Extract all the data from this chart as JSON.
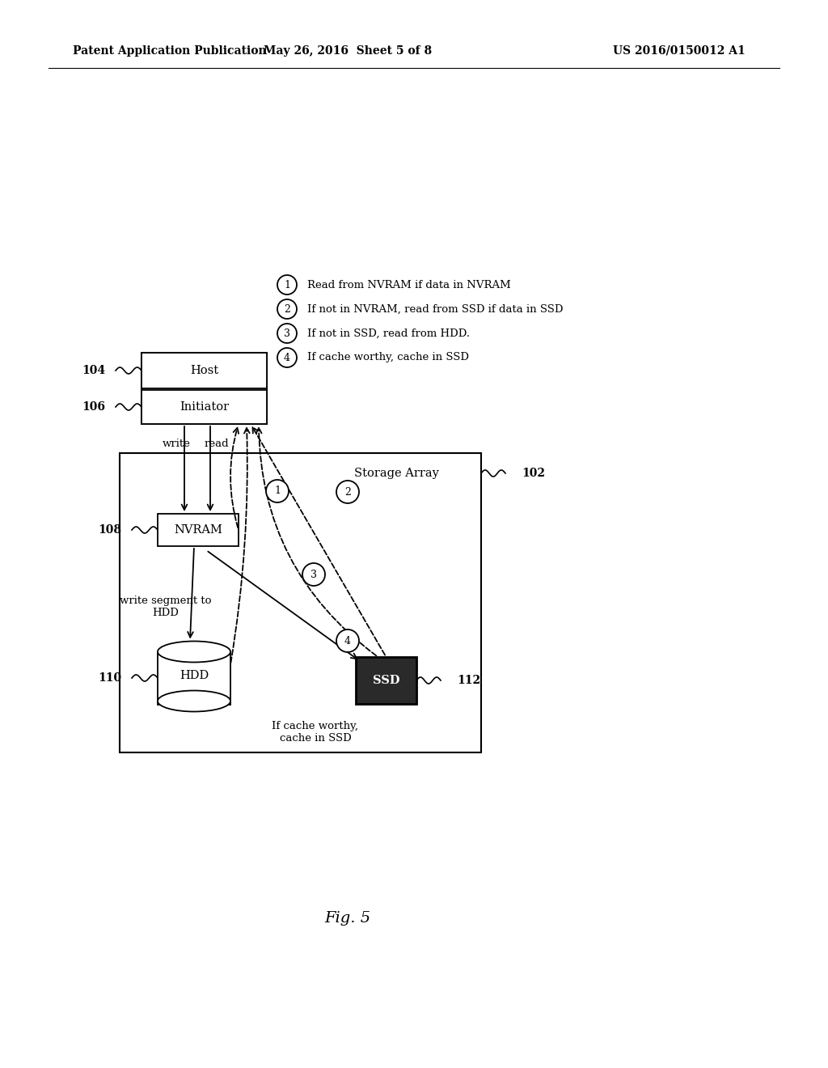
{
  "bg_color": "#ffffff",
  "header_left": "Patent Application Publication",
  "header_center": "May 26, 2016  Sheet 5 of 8",
  "header_right": "US 2016/0150012 A1",
  "fig_label": "Fig. 5",
  "legend_items": [
    "Read from NVRAM if data in NVRAM",
    "If not in NVRAM, read from SSD if data in SSD",
    "If not in SSD, read from HDD.",
    "If cache worthy, cache in SSD"
  ],
  "node_labels": {
    "host": "Host",
    "initiator": "Initiator",
    "nvram": "NVRAM",
    "hdd": "HDD",
    "ssd": "SSD"
  },
  "storage_array_label": "Storage Array",
  "write_label": "write",
  "read_label": "read",
  "write_segment_label": "write segment to\nHDD",
  "cache_worthy_label": "If cache worthy,\ncache in SSD",
  "ref_104": "104",
  "ref_106": "106",
  "ref_108": "108",
  "ref_110": "110",
  "ref_112": "112",
  "ref_102": "102"
}
